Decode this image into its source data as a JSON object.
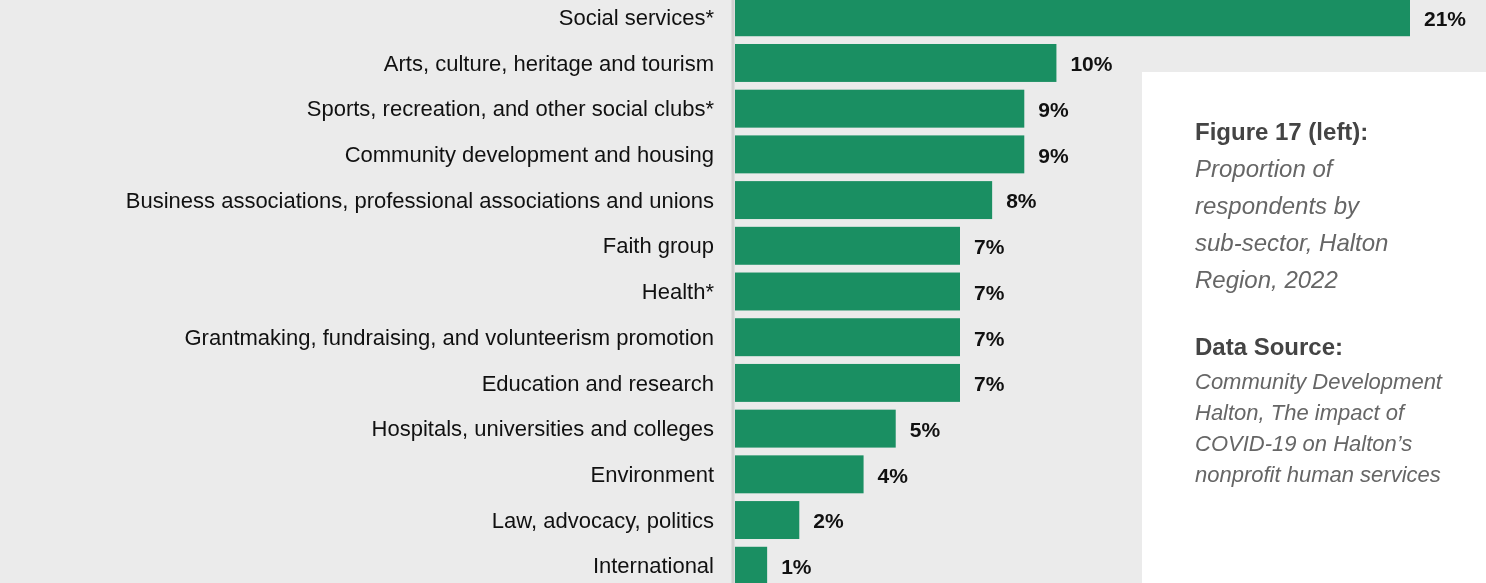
{
  "chart_data": {
    "type": "bar",
    "orientation": "horizontal",
    "title": "Figure 17 (left):",
    "subtitle": "Proportion of respondents by sub-sector, Halton Region, 2022",
    "categories": [
      "Social services*",
      "Arts, culture, heritage and tourism",
      "Sports, recreation, and other social clubs*",
      "Community development and housing",
      "Business associations, professional associations and unions",
      "Faith group",
      "Health*",
      "Grantmaking, fundraising, and volunteerism promotion",
      "Education and research",
      "Hospitals, universities and colleges",
      "Environment",
      "Law, advocacy, politics",
      "International"
    ],
    "values": [
      21,
      10,
      9,
      9,
      8,
      7,
      7,
      7,
      7,
      5,
      4,
      2,
      1
    ],
    "value_labels": [
      "21%",
      "10%",
      "9%",
      "9%",
      "8%",
      "7%",
      "7%",
      "7%",
      "7%",
      "5%",
      "4%",
      "2%",
      "1%"
    ],
    "color": "#1a8f62",
    "annotations": [
      "Data Source:",
      "Community Development Halton, The impact of COVID-19 on Halton’s nonprofit human services"
    ],
    "data_labels": true
  }
}
